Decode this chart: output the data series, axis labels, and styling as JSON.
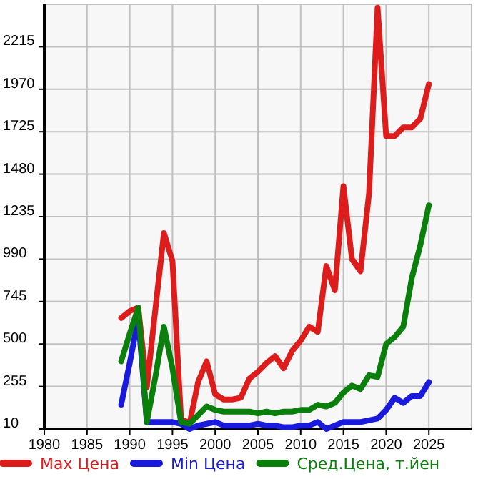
{
  "chart_data": {
    "type": "line",
    "x": [
      1989,
      1990,
      1991,
      1992,
      1993,
      1994,
      1995,
      1996,
      1997,
      1998,
      1999,
      2000,
      2001,
      2002,
      2003,
      2004,
      2005,
      2006,
      2007,
      2008,
      2009,
      2010,
      2011,
      2012,
      2013,
      2014,
      2015,
      2016,
      2017,
      2018,
      2019,
      2020,
      2021,
      2022,
      2023,
      2024,
      2025
    ],
    "series": [
      {
        "name": "Max Цена",
        "color": "#dd1c1c",
        "values": [
          650,
          690,
          710,
          250,
          700,
          1140,
          980,
          70,
          40,
          280,
          400,
          210,
          180,
          180,
          190,
          300,
          340,
          390,
          430,
          360,
          460,
          520,
          600,
          570,
          950,
          810,
          1410,
          990,
          920,
          1370,
          2440,
          1700,
          1700,
          1750,
          1750,
          1800,
          2000
        ]
      },
      {
        "name": "Min Цена",
        "color": "#1a1adc",
        "values": [
          150,
          390,
          650,
          50,
          50,
          50,
          50,
          40,
          10,
          30,
          40,
          50,
          30,
          30,
          30,
          30,
          40,
          30,
          30,
          20,
          20,
          30,
          30,
          50,
          10,
          30,
          50,
          50,
          50,
          60,
          70,
          120,
          190,
          160,
          200,
          200,
          280
        ]
      },
      {
        "name": "Сред.Цена, т.йен",
        "color": "#0b7f0b",
        "values": [
          400,
          560,
          710,
          50,
          310,
          600,
          360,
          50,
          40,
          90,
          140,
          120,
          110,
          110,
          110,
          110,
          100,
          110,
          100,
          110,
          110,
          120,
          120,
          150,
          140,
          160,
          220,
          260,
          240,
          320,
          310,
          500,
          540,
          600,
          880,
          1070,
          1300
        ]
      }
    ],
    "xlim": [
      1980,
      2030
    ],
    "xticks": [
      1980,
      1985,
      1990,
      1995,
      2000,
      2005,
      2010,
      2015,
      2020,
      2025
    ],
    "ylim": [
      10,
      2460
    ],
    "yticks": [
      10,
      255,
      500,
      745,
      990,
      1235,
      1480,
      1725,
      1970,
      2215
    ],
    "grid": true,
    "legend": "bottom",
    "line_style": "solid",
    "marker": "none"
  }
}
